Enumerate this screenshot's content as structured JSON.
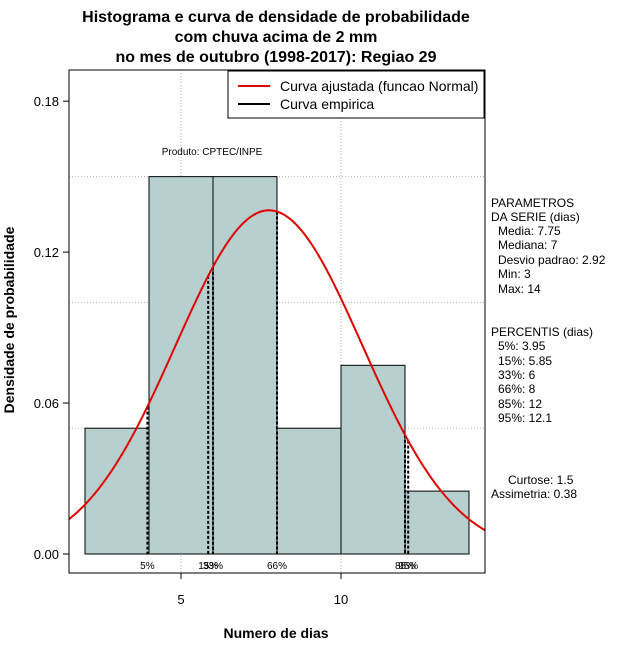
{
  "chart_data": {
    "type": "bar",
    "title": [
      "Histograma e curva de densidade de probabilidade",
      "com chuva acima de 2 mm",
      "no mes de outubro (1998-2017): Regiao 29"
    ],
    "xlabel": "Numero de dias",
    "ylabel": "Densidade de probabilidade",
    "xlim": [
      1.5,
      14.5
    ],
    "ylim": [
      0,
      0.19
    ],
    "x_ticks": [
      5,
      10
    ],
    "y_ticks": [
      0.0,
      0.06,
      0.12,
      0.18
    ],
    "y_tick_labels": [
      "0.00",
      "0.06",
      "0.12",
      "0.18"
    ],
    "grid": true,
    "bins": [
      {
        "start": 2,
        "end": 4,
        "density": 0.05
      },
      {
        "start": 4,
        "end": 6,
        "density": 0.15
      },
      {
        "start": 6,
        "end": 8,
        "density": 0.15
      },
      {
        "start": 8,
        "end": 10,
        "density": 0.05
      },
      {
        "start": 10,
        "end": 12,
        "density": 0.075
      },
      {
        "start": 12,
        "end": 14,
        "density": 0.025
      }
    ],
    "bar_color": "#b7cfcf",
    "fitted_curve": {
      "type": "normal",
      "mean": 7.75,
      "sd": 2.92,
      "color": "#e00000"
    },
    "percentile_markers": [
      {
        "label": "5%",
        "x": 3.95
      },
      {
        "label": "15%",
        "x": 5.85
      },
      {
        "label": "33%",
        "x": 6
      },
      {
        "label": "66%",
        "x": 8
      },
      {
        "label": "85%",
        "x": 12
      },
      {
        "label": "95%",
        "x": 12.1
      }
    ],
    "legend": {
      "position": "top-right",
      "entries": [
        {
          "label": "Curva ajustada (funcao Normal)",
          "color": "#e00000"
        },
        {
          "label": "Curva empirica",
          "color": "#000000"
        }
      ]
    },
    "annotation": "Produto: CPTEC/INPE"
  },
  "side_panel": {
    "parametros_title_1": "PARAMETROS",
    "parametros_title_2": "DA SERIE (dias)",
    "media": "Media: 7.75",
    "mediana": "Mediana: 7",
    "desvio": "Desvio padrao: 2.92",
    "min": "Min: 3",
    "max": "Max: 14",
    "percentis_title": "PERCENTIS (dias)",
    "p5": "5%: 3.95",
    "p15": "15%: 5.85",
    "p33": "33%: 6",
    "p66": "66%: 8",
    "p85": "85%: 12",
    "p95": "95%: 12.1",
    "curtose": "Curtose: 1.5",
    "assimetria": "Assimetria: 0.38"
  }
}
